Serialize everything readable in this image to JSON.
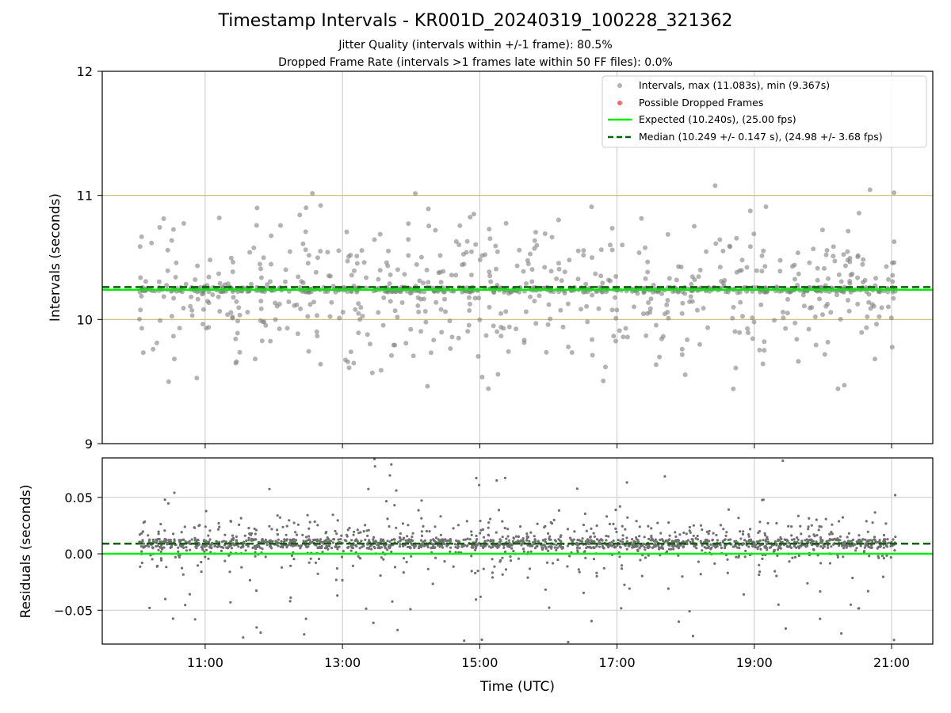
{
  "figure": {
    "title": "Timestamp Intervals - KR001D_20240319_100228_321362",
    "subtitle_jitter": "Jitter Quality (intervals within +/-1 frame): 80.5%",
    "subtitle_dropped": "Dropped Frame Rate (intervals >1 frames late within 50 FF files): 0.0%"
  },
  "colors": {
    "intervals": "#808080",
    "dropped": "#ff4040",
    "expected": "#00ee00",
    "median": "#006400",
    "guide_lines": "#c8b96a",
    "grid": "#c8c8c8"
  },
  "chart_data": [
    {
      "type": "scatter",
      "id": "intervals",
      "xlabel": "",
      "ylabel": "Intervals (seconds)",
      "xlim": [
        9.5,
        21.6
      ],
      "ylim": [
        9,
        12
      ],
      "yticks": [
        "9",
        "10",
        "11",
        "12"
      ],
      "xticks": [
        11,
        13,
        15,
        17,
        19,
        21
      ],
      "grid": "x",
      "reference_lines": [
        10,
        11
      ],
      "expected": 10.24,
      "median": 10.249,
      "legend_position": "top-right",
      "legend": [
        "Intervals, max (11.083s), min (9.367s)",
        "Possible Dropped Frames",
        "Expected (10.240s), (25.00 fps)",
        "Median (10.249 +/- 0.147 s), (24.98 +/- 3.68 fps)"
      ],
      "x_start": 10.04,
      "x_end": 21.06,
      "max": 11.083,
      "min": 9.367,
      "std": 0.147,
      "point_count": 1100
    },
    {
      "type": "scatter",
      "id": "residuals",
      "xlabel": "Time (UTC)",
      "ylabel": "Residuals (seconds)",
      "xlim": [
        9.5,
        21.6
      ],
      "ylim": [
        -0.08,
        0.085
      ],
      "yticks": [
        {
          "v": 0.05,
          "label": "0.05"
        },
        {
          "v": 0.0,
          "label": "0.00"
        },
        {
          "v": -0.05,
          "label": "−0.05"
        }
      ],
      "xticks": [
        "11:00",
        "13:00",
        "15:00",
        "17:00",
        "19:00",
        "21:00"
      ],
      "grid": "both",
      "expected": 0.0,
      "median": 0.009,
      "point_count": 1900
    }
  ]
}
